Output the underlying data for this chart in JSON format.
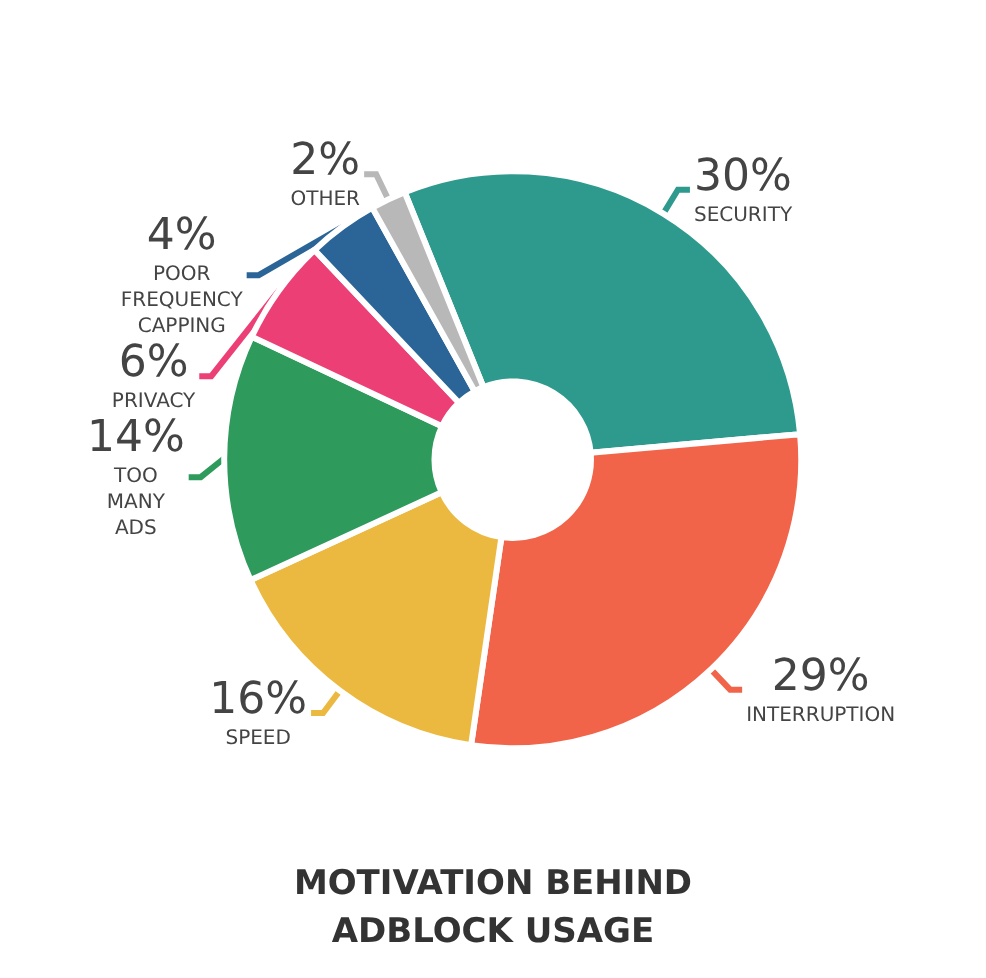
{
  "chart_data": {
    "type": "donut",
    "title": "MOTIVATION BEHIND ADBLOCK USAGE",
    "categories": [
      "SECURITY",
      "INTERRUPTION",
      "SPEED",
      "TOO MANY ADS",
      "PRIVACY",
      "POOR FREQUENCY CAPPING",
      "OTHER"
    ],
    "values": [
      30,
      29,
      16,
      14,
      6,
      4,
      2
    ],
    "colors": [
      "#2e9a8e",
      "#f26449",
      "#ecb940",
      "#2e9a5b",
      "#ec3f76",
      "#2b6496",
      "#b8b8b8"
    ],
    "value_labels": [
      "30%",
      "29%",
      "16%",
      "14%",
      "6%",
      "4%",
      "2%"
    ],
    "legend": false
  }
}
